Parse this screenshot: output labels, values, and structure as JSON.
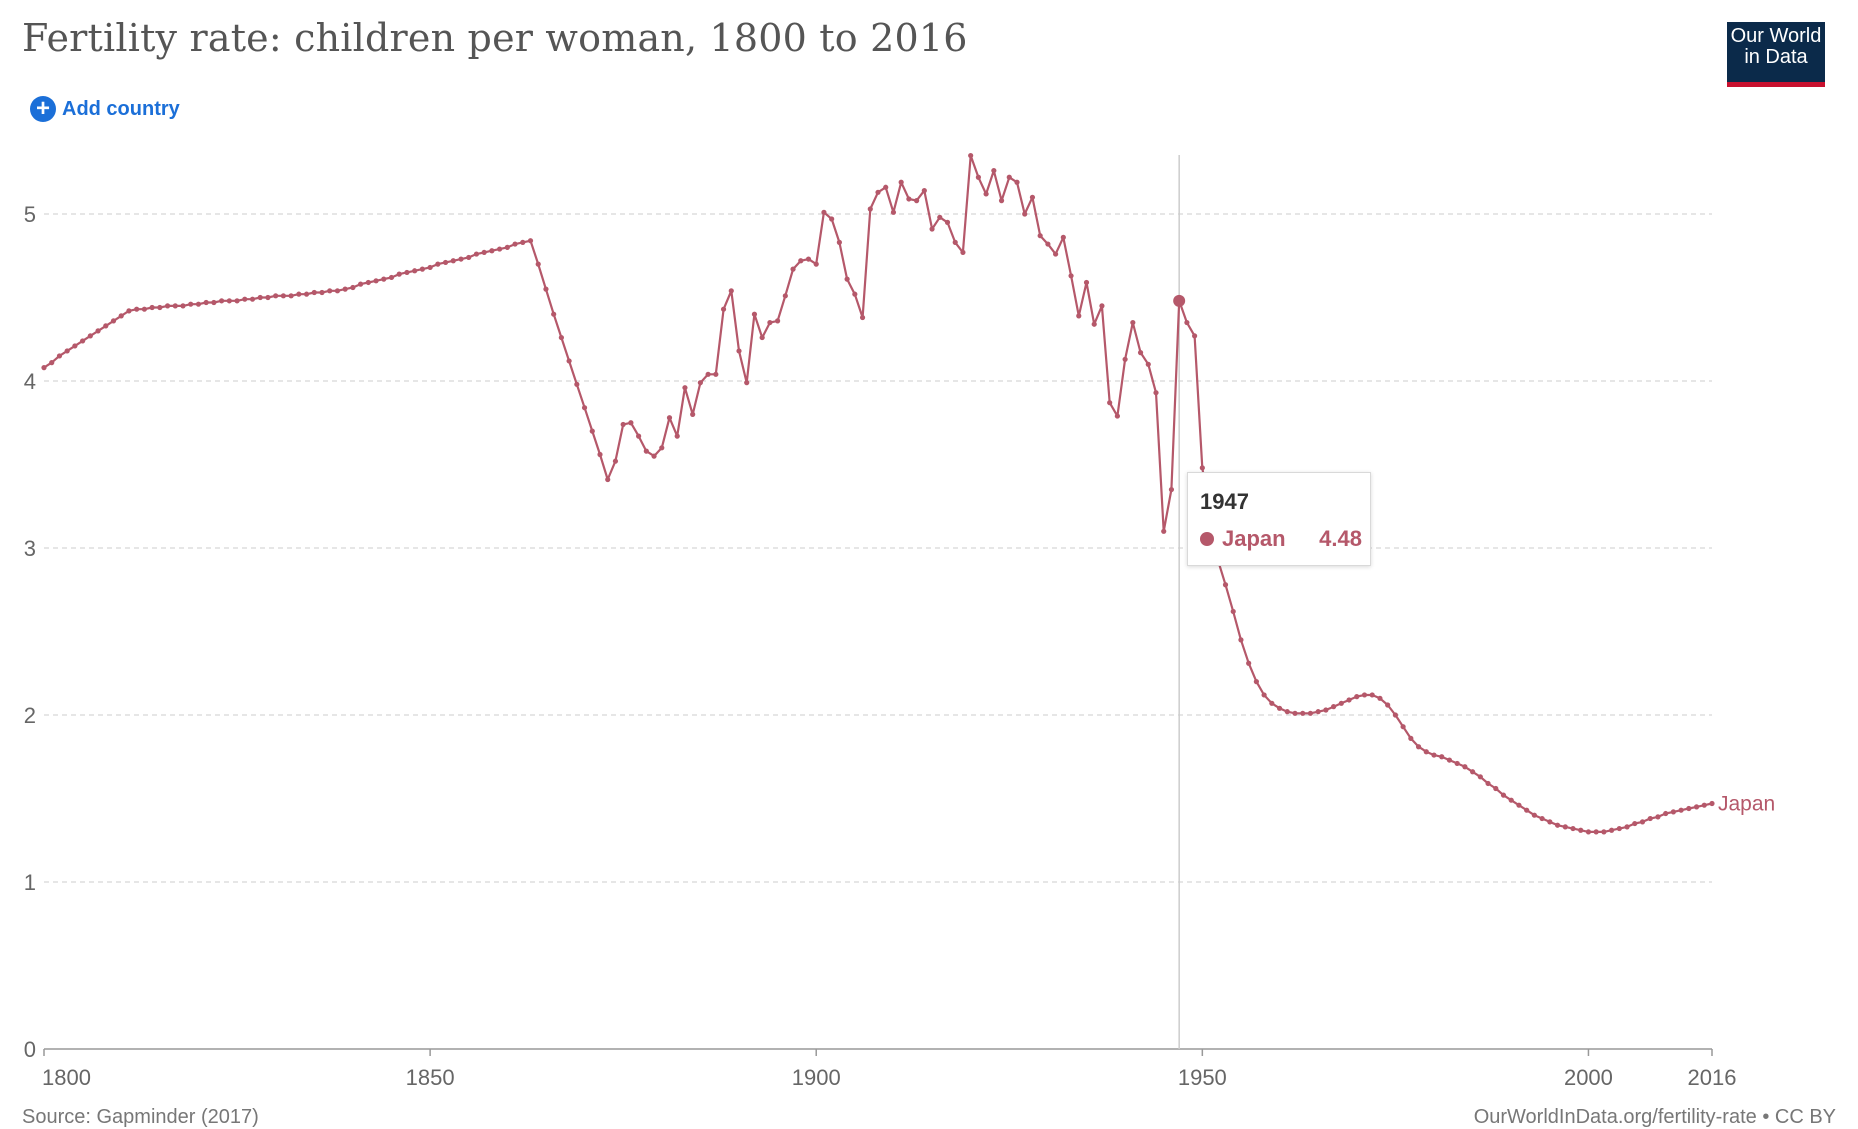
{
  "header": {
    "title": "Fertility rate: children per woman, 1800 to 2016",
    "logo_line1": "Our World",
    "logo_line2": "in Data",
    "add_country_label": "Add country",
    "add_icon": "plus-circle-icon"
  },
  "colors": {
    "series": "#b5586a",
    "grid": "#dddddd",
    "axis_text": "#666666",
    "link": "#1b6fd8",
    "logo_bg": "#0b2a4a",
    "logo_accent": "#c8102e"
  },
  "tooltip": {
    "year": "1947",
    "country": "Japan",
    "value": "4.48"
  },
  "footer": {
    "source": "Source: Gapminder (2017)",
    "url": "OurWorldInData.org/fertility-rate • CC BY"
  },
  "chart_data": {
    "type": "line",
    "title": "Fertility rate: children per woman, 1800 to 2016",
    "xlabel": "",
    "ylabel": "",
    "xlim": [
      1800,
      2016
    ],
    "ylim": [
      0,
      5.5
    ],
    "x_ticks": [
      1800,
      1850,
      1900,
      1950,
      2000,
      2016
    ],
    "y_ticks": [
      0,
      1,
      2,
      3,
      4,
      5
    ],
    "grid": "horizontal dashed",
    "highlight": {
      "x": 1947,
      "y": 4.48,
      "series": "Japan"
    },
    "series": [
      {
        "name": "Japan",
        "points": [
          [
            1800,
            4.08
          ],
          [
            1801,
            4.11
          ],
          [
            1802,
            4.15
          ],
          [
            1803,
            4.18
          ],
          [
            1804,
            4.21
          ],
          [
            1805,
            4.24
          ],
          [
            1806,
            4.27
          ],
          [
            1807,
            4.3
          ],
          [
            1808,
            4.33
          ],
          [
            1809,
            4.36
          ],
          [
            1810,
            4.39
          ],
          [
            1811,
            4.42
          ],
          [
            1812,
            4.43
          ],
          [
            1813,
            4.43
          ],
          [
            1814,
            4.44
          ],
          [
            1815,
            4.44
          ],
          [
            1816,
            4.45
          ],
          [
            1817,
            4.45
          ],
          [
            1818,
            4.45
          ],
          [
            1819,
            4.46
          ],
          [
            1820,
            4.46
          ],
          [
            1821,
            4.47
          ],
          [
            1822,
            4.47
          ],
          [
            1823,
            4.48
          ],
          [
            1824,
            4.48
          ],
          [
            1825,
            4.48
          ],
          [
            1826,
            4.49
          ],
          [
            1827,
            4.49
          ],
          [
            1828,
            4.5
          ],
          [
            1829,
            4.5
          ],
          [
            1830,
            4.51
          ],
          [
            1831,
            4.51
          ],
          [
            1832,
            4.51
          ],
          [
            1833,
            4.52
          ],
          [
            1834,
            4.52
          ],
          [
            1835,
            4.53
          ],
          [
            1836,
            4.53
          ],
          [
            1837,
            4.54
          ],
          [
            1838,
            4.54
          ],
          [
            1839,
            4.55
          ],
          [
            1840,
            4.56
          ],
          [
            1841,
            4.58
          ],
          [
            1842,
            4.59
          ],
          [
            1843,
            4.6
          ],
          [
            1844,
            4.61
          ],
          [
            1845,
            4.62
          ],
          [
            1846,
            4.64
          ],
          [
            1847,
            4.65
          ],
          [
            1848,
            4.66
          ],
          [
            1849,
            4.67
          ],
          [
            1850,
            4.68
          ],
          [
            1851,
            4.7
          ],
          [
            1852,
            4.71
          ],
          [
            1853,
            4.72
          ],
          [
            1854,
            4.73
          ],
          [
            1855,
            4.74
          ],
          [
            1856,
            4.76
          ],
          [
            1857,
            4.77
          ],
          [
            1858,
            4.78
          ],
          [
            1859,
            4.79
          ],
          [
            1860,
            4.8
          ],
          [
            1861,
            4.82
          ],
          [
            1862,
            4.83
          ],
          [
            1863,
            4.84
          ],
          [
            1864,
            4.7
          ],
          [
            1865,
            4.55
          ],
          [
            1866,
            4.4
          ],
          [
            1867,
            4.26
          ],
          [
            1868,
            4.12
          ],
          [
            1869,
            3.98
          ],
          [
            1870,
            3.84
          ],
          [
            1871,
            3.7
          ],
          [
            1872,
            3.56
          ],
          [
            1873,
            3.41
          ],
          [
            1874,
            3.52
          ],
          [
            1875,
            3.74
          ],
          [
            1876,
            3.75
          ],
          [
            1877,
            3.67
          ],
          [
            1878,
            3.58
          ],
          [
            1879,
            3.55
          ],
          [
            1880,
            3.6
          ],
          [
            1881,
            3.78
          ],
          [
            1882,
            3.67
          ],
          [
            1883,
            3.96
          ],
          [
            1884,
            3.8
          ],
          [
            1885,
            3.99
          ],
          [
            1886,
            4.04
          ],
          [
            1887,
            4.04
          ],
          [
            1888,
            4.43
          ],
          [
            1889,
            4.54
          ],
          [
            1890,
            4.18
          ],
          [
            1891,
            3.99
          ],
          [
            1892,
            4.4
          ],
          [
            1893,
            4.26
          ],
          [
            1894,
            4.35
          ],
          [
            1895,
            4.36
          ],
          [
            1896,
            4.51
          ],
          [
            1897,
            4.67
          ],
          [
            1898,
            4.72
          ],
          [
            1899,
            4.73
          ],
          [
            1900,
            4.7
          ],
          [
            1901,
            5.01
          ],
          [
            1902,
            4.97
          ],
          [
            1903,
            4.83
          ],
          [
            1904,
            4.61
          ],
          [
            1905,
            4.52
          ],
          [
            1906,
            4.38
          ],
          [
            1907,
            5.03
          ],
          [
            1908,
            5.13
          ],
          [
            1909,
            5.16
          ],
          [
            1910,
            5.01
          ],
          [
            1911,
            5.19
          ],
          [
            1912,
            5.09
          ],
          [
            1913,
            5.08
          ],
          [
            1914,
            5.14
          ],
          [
            1915,
            4.91
          ],
          [
            1916,
            4.98
          ],
          [
            1917,
            4.95
          ],
          [
            1918,
            4.83
          ],
          [
            1919,
            4.77
          ],
          [
            1920,
            5.35
          ],
          [
            1921,
            5.22
          ],
          [
            1922,
            5.12
          ],
          [
            1923,
            5.26
          ],
          [
            1924,
            5.08
          ],
          [
            1925,
            5.22
          ],
          [
            1926,
            5.19
          ],
          [
            1927,
            5.0
          ],
          [
            1928,
            5.1
          ],
          [
            1929,
            4.87
          ],
          [
            1930,
            4.82
          ],
          [
            1931,
            4.76
          ],
          [
            1932,
            4.86
          ],
          [
            1933,
            4.63
          ],
          [
            1934,
            4.39
          ],
          [
            1935,
            4.59
          ],
          [
            1936,
            4.34
          ],
          [
            1937,
            4.45
          ],
          [
            1938,
            3.87
          ],
          [
            1939,
            3.79
          ],
          [
            1940,
            4.13
          ],
          [
            1941,
            4.35
          ],
          [
            1942,
            4.17
          ],
          [
            1943,
            4.1
          ],
          [
            1944,
            3.93
          ],
          [
            1945,
            3.1
          ],
          [
            1946,
            3.35
          ],
          [
            1947,
            4.48
          ],
          [
            1948,
            4.35
          ],
          [
            1949,
            4.27
          ],
          [
            1950,
            3.48
          ],
          [
            1951,
            3.2
          ],
          [
            1952,
            2.93
          ],
          [
            1953,
            2.78
          ],
          [
            1954,
            2.62
          ],
          [
            1955,
            2.45
          ],
          [
            1956,
            2.31
          ],
          [
            1957,
            2.2
          ],
          [
            1958,
            2.12
          ],
          [
            1959,
            2.07
          ],
          [
            1960,
            2.04
          ],
          [
            1961,
            2.02
          ],
          [
            1962,
            2.01
          ],
          [
            1963,
            2.01
          ],
          [
            1964,
            2.01
          ],
          [
            1965,
            2.02
          ],
          [
            1966,
            2.03
          ],
          [
            1967,
            2.05
          ],
          [
            1968,
            2.07
          ],
          [
            1969,
            2.09
          ],
          [
            1970,
            2.11
          ],
          [
            1971,
            2.12
          ],
          [
            1972,
            2.12
          ],
          [
            1973,
            2.1
          ],
          [
            1974,
            2.06
          ],
          [
            1975,
            2.0
          ],
          [
            1976,
            1.93
          ],
          [
            1977,
            1.86
          ],
          [
            1978,
            1.81
          ],
          [
            1979,
            1.78
          ],
          [
            1980,
            1.76
          ],
          [
            1981,
            1.75
          ],
          [
            1982,
            1.73
          ],
          [
            1983,
            1.71
          ],
          [
            1984,
            1.69
          ],
          [
            1985,
            1.66
          ],
          [
            1986,
            1.63
          ],
          [
            1987,
            1.59
          ],
          [
            1988,
            1.56
          ],
          [
            1989,
            1.52
          ],
          [
            1990,
            1.49
          ],
          [
            1991,
            1.46
          ],
          [
            1992,
            1.43
          ],
          [
            1993,
            1.4
          ],
          [
            1994,
            1.38
          ],
          [
            1995,
            1.36
          ],
          [
            1996,
            1.34
          ],
          [
            1997,
            1.33
          ],
          [
            1998,
            1.32
          ],
          [
            1999,
            1.31
          ],
          [
            2000,
            1.3
          ],
          [
            2001,
            1.3
          ],
          [
            2002,
            1.3
          ],
          [
            2003,
            1.31
          ],
          [
            2004,
            1.32
          ],
          [
            2005,
            1.33
          ],
          [
            2006,
            1.35
          ],
          [
            2007,
            1.36
          ],
          [
            2008,
            1.38
          ],
          [
            2009,
            1.39
          ],
          [
            2010,
            1.41
          ],
          [
            2011,
            1.42
          ],
          [
            2012,
            1.43
          ],
          [
            2013,
            1.44
          ],
          [
            2014,
            1.45
          ],
          [
            2015,
            1.46
          ],
          [
            2016,
            1.47
          ]
        ]
      }
    ]
  }
}
